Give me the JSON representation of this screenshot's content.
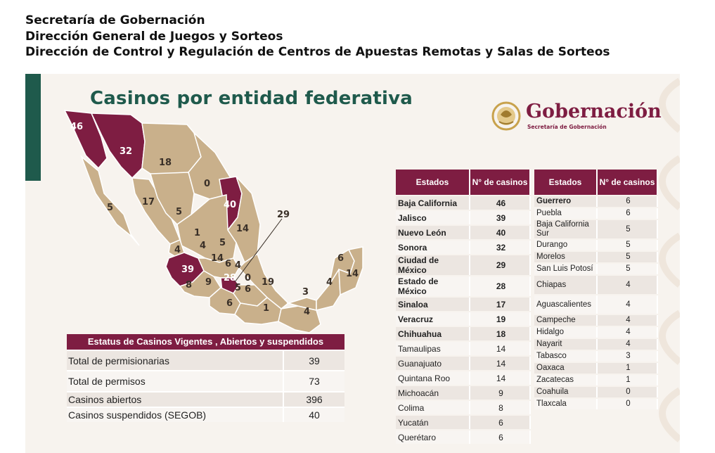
{
  "header": {
    "line1": "Secretaría de Gobernación",
    "line2": "Dirección General de Juegos y Sorteos",
    "line3": "Dirección de Control y Regulación de Centros de Apuestas Remotas y Salas de Sorteos"
  },
  "slide": {
    "title": "Casinos por entidad federativa"
  },
  "logo": {
    "name": "Gobernación",
    "subtitle": "Secretaría de Gobernación",
    "icon": "coat-of-arms-icon"
  },
  "colors": {
    "brand": "#7e1d42",
    "title_green": "#1f5a4c",
    "map_tan": "#c9b08b",
    "map_highlight": "#7e1d42",
    "slide_bg": "#f7f3ee"
  },
  "map": {
    "labels": [
      "46",
      "32",
      "18",
      "0",
      "5",
      "17",
      "5",
      "40",
      "14",
      "1",
      "4",
      "4",
      "5",
      "29",
      "39",
      "14",
      "6",
      "4",
      "28",
      "0",
      "19",
      "8",
      "9",
      "5",
      "6",
      "6",
      "14",
      "4",
      "3",
      "1",
      "4",
      "6"
    ]
  },
  "table_left": {
    "col_state": "Estados",
    "col_count": "N° de casinos",
    "rows": [
      {
        "state": "Baja California",
        "count": "46"
      },
      {
        "state": "Jalisco",
        "count": "39"
      },
      {
        "state": "Nuevo León",
        "count": "40"
      },
      {
        "state": "Sonora",
        "count": "32"
      },
      {
        "state": "Ciudad de México",
        "count": "29"
      },
      {
        "state": "Estado de México",
        "count": "28"
      },
      {
        "state": "Sinaloa",
        "count": "17"
      },
      {
        "state": "Veracruz",
        "count": "19"
      },
      {
        "state": "Chihuahua",
        "count": "18"
      },
      {
        "state": "Tamaulipas",
        "count": "14"
      },
      {
        "state": "Guanajuato",
        "count": "14"
      },
      {
        "state": "Quintana Roo",
        "count": "14"
      },
      {
        "state": "Michoacán",
        "count": "9"
      },
      {
        "state": "Colima",
        "count": "8"
      },
      {
        "state": "Yucatán",
        "count": "6"
      },
      {
        "state": "Querétaro",
        "count": "6"
      }
    ]
  },
  "table_right": {
    "col_state": "Estados",
    "col_count": "N° de casinos",
    "rows": [
      {
        "state": "Guerrero",
        "count": "6"
      },
      {
        "state": "Puebla",
        "count": "6"
      },
      {
        "state": "Baja California Sur",
        "count": "5"
      },
      {
        "state": "Durango",
        "count": "5"
      },
      {
        "state": "Morelos",
        "count": "5"
      },
      {
        "state": "San Luis Potosí",
        "count": "5"
      },
      {
        "state": "Chiapas",
        "count": "4"
      },
      {
        "state": "Aguascalientes",
        "count": "4"
      },
      {
        "state": "Campeche",
        "count": "4"
      },
      {
        "state": "Hidalgo",
        "count": "4"
      },
      {
        "state": "Nayarit",
        "count": "4"
      },
      {
        "state": "Tabasco",
        "count": "3"
      },
      {
        "state": "Oaxaca",
        "count": "1"
      },
      {
        "state": "Zacatecas",
        "count": "1"
      },
      {
        "state": "Coahuila",
        "count": "0"
      },
      {
        "state": "Tlaxcala",
        "count": "0"
      }
    ]
  },
  "status": {
    "title": "Estatus de Casinos Vigentes , Abiertos y suspendidos",
    "rows": [
      {
        "label": "Total de permisionarias",
        "value": "39"
      },
      {
        "label": "Total de permisos",
        "value": "73"
      },
      {
        "label": "Casinos abiertos",
        "value": "396"
      },
      {
        "label": "Casinos suspendidos (SEGOB)",
        "value": "40"
      }
    ]
  }
}
